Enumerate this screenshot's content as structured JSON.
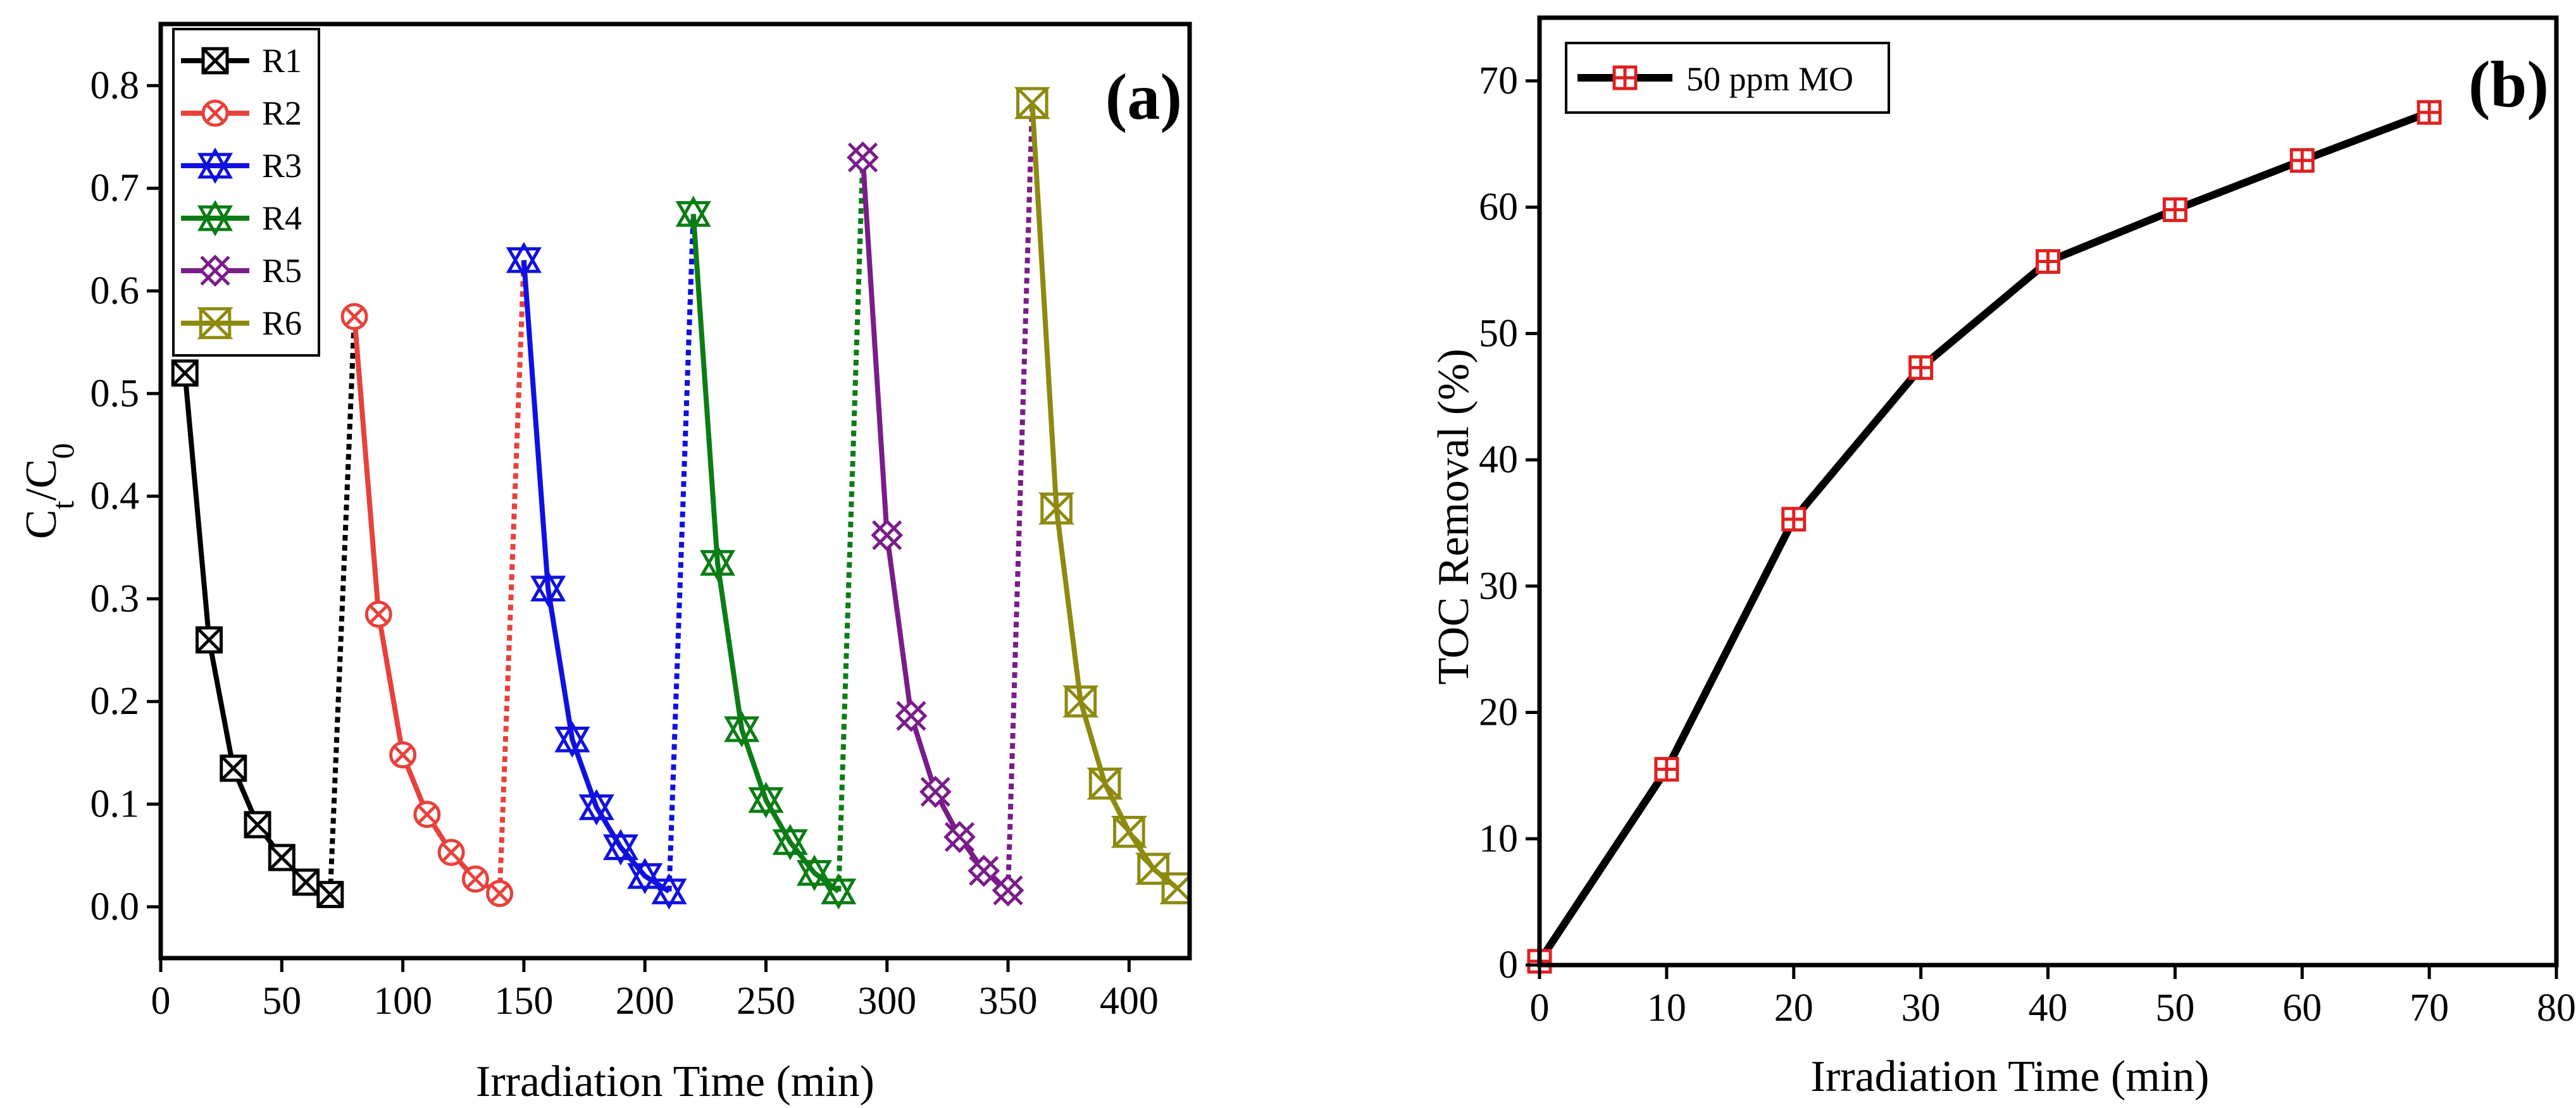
{
  "chart_data": [
    {
      "panel_label": "(a)",
      "type": "line",
      "xlabel": "Irradiation Time (min)",
      "ylabel": {
        "main": "C",
        "sub1": "t",
        "slash": "/C",
        "sub2": "0"
      },
      "xlim": [
        0,
        425
      ],
      "ylim": [
        -0.05,
        0.86
      ],
      "xticks": [
        "0",
        "50",
        "100",
        "150",
        "200",
        "250",
        "300",
        "350",
        "400"
      ],
      "xtick_values": [
        0,
        50,
        100,
        150,
        200,
        250,
        300,
        350,
        400
      ],
      "yticks": [
        "0.0",
        "0.1",
        "0.2",
        "0.3",
        "0.4",
        "0.5",
        "0.6",
        "0.7",
        "0.8"
      ],
      "ytick_values": [
        0,
        0.1,
        0.2,
        0.3,
        0.4,
        0.5,
        0.6,
        0.7,
        0.8
      ],
      "legend_position": "top-left",
      "series": [
        {
          "name": "R1",
          "color": "#000000",
          "marker": "square-x",
          "x": [
            10,
            20,
            30,
            40,
            50,
            60,
            70
          ],
          "y": [
            0.52,
            0.26,
            0.135,
            0.08,
            0.048,
            0.024,
            0.012
          ]
        },
        {
          "name": "R2",
          "color": "#e8413b",
          "marker": "circle-x",
          "x": [
            80,
            90,
            100,
            110,
            120,
            130,
            140
          ],
          "y": [
            0.575,
            0.285,
            0.148,
            0.09,
            0.053,
            0.027,
            0.013
          ]
        },
        {
          "name": "R3",
          "color": "#1010e0",
          "marker": "star-tri-up",
          "x": [
            150,
            160,
            170,
            180,
            190,
            200,
            210
          ],
          "y": [
            0.63,
            0.31,
            0.163,
            0.097,
            0.058,
            0.03,
            0.015
          ]
        },
        {
          "name": "R4",
          "color": "#0b7d14",
          "marker": "star-tri-down",
          "x": [
            220,
            230,
            240,
            250,
            260,
            270,
            280
          ],
          "y": [
            0.675,
            0.335,
            0.173,
            0.104,
            0.063,
            0.033,
            0.015
          ]
        },
        {
          "name": "R5",
          "color": "#7a1c8a",
          "marker": "diamond-x",
          "x": [
            290,
            300,
            310,
            320,
            330,
            340,
            350
          ],
          "y": [
            0.73,
            0.362,
            0.186,
            0.112,
            0.068,
            0.035,
            0.016
          ]
        },
        {
          "name": "R6",
          "color": "#8e8a10",
          "marker": "bowtie",
          "x": [
            360,
            370,
            380,
            390,
            400,
            410,
            420
          ],
          "y": [
            0.783,
            0.388,
            0.2,
            0.12,
            0.073,
            0.037,
            0.018
          ]
        }
      ],
      "connectors": [
        {
          "color": "#000000",
          "from": [
            70,
            0.012
          ],
          "to": [
            80,
            0.575
          ]
        },
        {
          "color": "#e8413b",
          "from": [
            140,
            0.013
          ],
          "to": [
            150,
            0.63
          ]
        },
        {
          "color": "#1010e0",
          "from": [
            210,
            0.015
          ],
          "to": [
            220,
            0.675
          ]
        },
        {
          "color": "#0b7d14",
          "from": [
            280,
            0.015
          ],
          "to": [
            290,
            0.73
          ]
        },
        {
          "color": "#7a1c8a",
          "from": [
            350,
            0.016
          ],
          "to": [
            360,
            0.783
          ]
        }
      ]
    },
    {
      "panel_label": "(b)",
      "type": "line",
      "xlabel": "Irradiation Time (min)",
      "ylabel": "TOC Removal (%)",
      "xlim": [
        0,
        80
      ],
      "ylim": [
        0,
        75
      ],
      "xticks": [
        "0",
        "10",
        "20",
        "30",
        "40",
        "50",
        "60",
        "70",
        "80"
      ],
      "xtick_values": [
        0,
        10,
        20,
        30,
        40,
        50,
        60,
        70,
        80
      ],
      "yticks": [
        "0",
        "10",
        "20",
        "30",
        "40",
        "50",
        "60",
        "70"
      ],
      "ytick_values": [
        0,
        10,
        20,
        30,
        40,
        50,
        60,
        70
      ],
      "legend_position": "top-left",
      "series": [
        {
          "name": "50 ppm MO",
          "color": "#000000",
          "marker_color": "#e02020",
          "marker": "square-plus",
          "x": [
            0,
            10,
            20,
            30,
            40,
            50,
            60,
            70
          ],
          "y": [
            0.3,
            15.5,
            35.3,
            47.3,
            55.7,
            59.8,
            63.7,
            67.5
          ]
        }
      ]
    }
  ]
}
